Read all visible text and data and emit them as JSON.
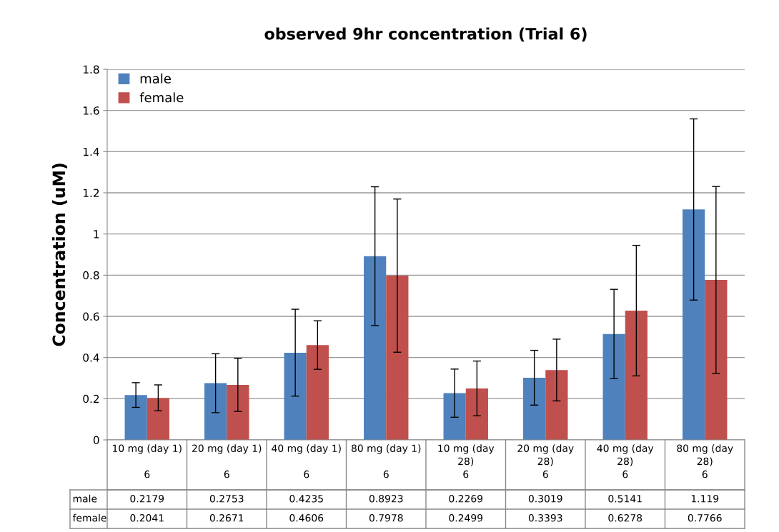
{
  "chart_data": {
    "type": "bar",
    "title": "observed 9hr concentration (Trial 6)",
    "ylabel": "Concentration (uM)",
    "categories": [
      "10 mg (day 1)\n\n6",
      "20 mg (day 1)\n\n6",
      "40 mg (day 1)\n\n6",
      "80 mg (day 1)\n\n6",
      "10 mg (day\n28)\n6",
      "20 mg (day\n28)\n6",
      "40 mg (day\n28)\n6",
      "80 mg (day\n28)\n6"
    ],
    "series": [
      {
        "name": "male",
        "color": "#4f81bd",
        "values": [
          0.2179,
          0.2753,
          0.4235,
          0.8923,
          0.2269,
          0.3019,
          0.5141,
          1.119
        ],
        "errors": [
          0.06,
          0.143,
          0.211,
          0.337,
          0.117,
          0.133,
          0.217,
          0.44
        ]
      },
      {
        "name": "female",
        "color": "#c0504d",
        "values": [
          0.2041,
          0.2671,
          0.4606,
          0.7978,
          0.2499,
          0.3393,
          0.6278,
          0.7766
        ],
        "errors": [
          0.063,
          0.129,
          0.118,
          0.372,
          0.133,
          0.15,
          0.317,
          0.454
        ]
      }
    ],
    "ylim": [
      0,
      1.8
    ],
    "yticks": [
      0,
      0.2,
      0.4,
      0.6,
      0.8,
      1,
      1.2,
      1.4,
      1.6,
      1.8
    ],
    "grid": "y",
    "legend": "top left",
    "data_labels": true
  }
}
